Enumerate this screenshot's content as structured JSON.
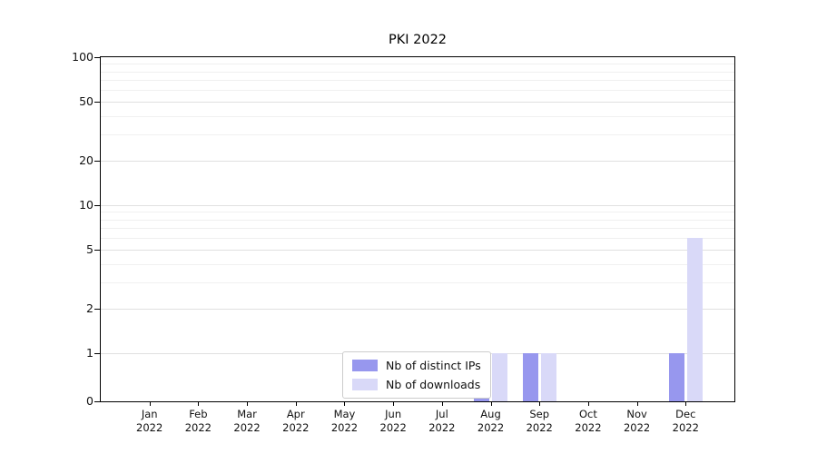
{
  "chart_data": {
    "type": "bar",
    "title": "PKI 2022",
    "xlabel": "",
    "ylabel": "",
    "yscale": "symlog",
    "ylim": [
      0,
      100
    ],
    "yticks": [
      0,
      1,
      2,
      5,
      10,
      20,
      50,
      100
    ],
    "minor_gridlines": [
      3,
      4,
      6,
      7,
      8,
      9,
      30,
      40,
      60,
      70,
      80,
      90
    ],
    "grid": true,
    "legend_position": "bottom-center",
    "categories": [
      {
        "month": "Jan",
        "year": "2022"
      },
      {
        "month": "Feb",
        "year": "2022"
      },
      {
        "month": "Mar",
        "year": "2022"
      },
      {
        "month": "Apr",
        "year": "2022"
      },
      {
        "month": "May",
        "year": "2022"
      },
      {
        "month": "Jun",
        "year": "2022"
      },
      {
        "month": "Jul",
        "year": "2022"
      },
      {
        "month": "Aug",
        "year": "2022"
      },
      {
        "month": "Sep",
        "year": "2022"
      },
      {
        "month": "Oct",
        "year": "2022"
      },
      {
        "month": "Nov",
        "year": "2022"
      },
      {
        "month": "Dec",
        "year": "2022"
      }
    ],
    "series": [
      {
        "name": "Nb of distinct IPs",
        "color": "#9797ee",
        "values": [
          0,
          0,
          0,
          0,
          0,
          0,
          0,
          1,
          1,
          0,
          0,
          1
        ]
      },
      {
        "name": "Nb of downloads",
        "color": "#d9d9f8",
        "values": [
          0,
          0,
          0,
          0,
          0,
          0,
          0,
          1,
          1,
          0,
          0,
          6
        ]
      }
    ]
  }
}
